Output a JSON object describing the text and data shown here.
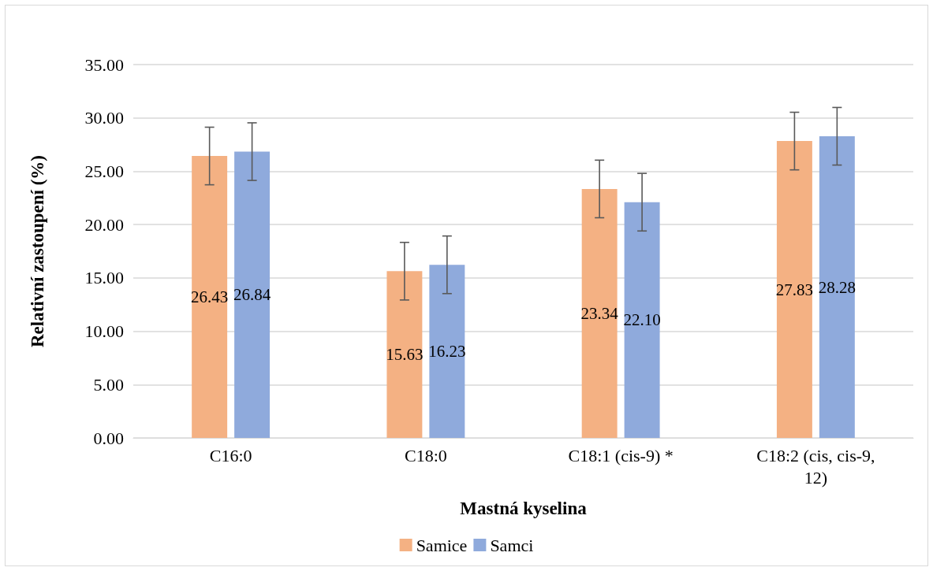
{
  "chart_data": {
    "type": "bar",
    "xlabel": "Mastná kyselina",
    "ylabel": "Relativní zastoupení (%)",
    "categories": [
      "C16:0",
      "C18:0",
      "C18:1 (cis-9) *",
      "C18:2 (cis, cis-9,12)"
    ],
    "series": [
      {
        "name": "Samice",
        "color": "#f4b183",
        "values": [
          26.43,
          15.63,
          23.34,
          27.83
        ],
        "value_labels": [
          "26.43",
          "15.63",
          "23.34",
          "27.83"
        ],
        "errors": [
          2.7,
          2.7,
          2.7,
          2.7
        ]
      },
      {
        "name": "Samci",
        "color": "#8faadc",
        "values": [
          26.84,
          16.23,
          22.1,
          28.28
        ],
        "value_labels": [
          "26.84",
          "16.23",
          "22.10",
          "28.28"
        ],
        "errors": [
          2.7,
          2.7,
          2.7,
          2.7
        ]
      }
    ],
    "ylim": [
      0,
      35
    ],
    "yticks": [
      {
        "value": 0,
        "label": "0.00"
      },
      {
        "value": 5,
        "label": "5.00"
      },
      {
        "value": 10,
        "label": "10.00"
      },
      {
        "value": 15,
        "label": "15.00"
      },
      {
        "value": 20,
        "label": "20.00"
      },
      {
        "value": 25,
        "label": "25.00"
      },
      {
        "value": 30,
        "label": "30.00"
      },
      {
        "value": 35,
        "label": "35.00"
      }
    ],
    "grid": "y",
    "legend": "bottom"
  }
}
